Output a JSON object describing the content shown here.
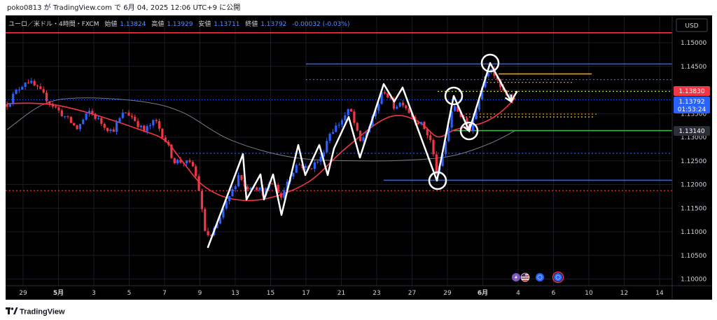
{
  "attribution": "poko0813 が TradingView.com で 6月 04, 2025 12:06 UTC+9 に公開",
  "header": {
    "symbol": "ユーロ／米ドル・4時間・FXCM",
    "open_label": "始値",
    "open": "1.13824",
    "high_label": "高値",
    "high": "1.13929",
    "low_label": "安値",
    "low": "1.13711",
    "close_label": "終値",
    "close": "1.13792",
    "change": "-0.00032 (-0.03%)"
  },
  "price_scale": {
    "currency": "USD",
    "ticks": [
      "1.15000",
      "1.14500",
      "1.13500",
      "1.13000",
      "1.12500",
      "1.12000",
      "1.11500",
      "1.11000",
      "1.10500",
      "1.10000"
    ]
  },
  "badges": {
    "fast_ma": {
      "value": "1.13830",
      "color": "#f23645"
    },
    "last_price": {
      "value": "1.13792",
      "countdown": "01:53:24",
      "color": "#2962ff"
    },
    "level": {
      "value": "1.13140",
      "color": "#2a2e39"
    }
  },
  "time_axis": {
    "labels": [
      "29",
      "5月",
      "3",
      "5",
      "7",
      "9",
      "13",
      "15",
      "17",
      "21",
      "23",
      "27",
      "29",
      "6月",
      "4",
      "6",
      "10",
      "12",
      "14"
    ]
  },
  "events": [
    {
      "icon": "lightning-icon",
      "color": "#7e57c2"
    },
    {
      "icon": "us-flag-icon",
      "color": "#b22234"
    },
    {
      "icon": "economic-event-icon",
      "color": "#2962ff"
    },
    {
      "icon": "economic-event-icon",
      "color": "#2962ff"
    }
  ],
  "colors": {
    "candle_up": "#2962ff",
    "candle_down": "#f23645",
    "chart_bg": "#000000",
    "grid": "#1a1d26",
    "fast_ma": "#f23645",
    "slow_ma": "#787b86",
    "pattern_lines": "#ffffff",
    "last_price_line": "#2962ff"
  },
  "footer": {
    "brand": "TradingView"
  },
  "chart_data": {
    "type": "bar",
    "ylim": [
      1.0986,
      1.1558
    ],
    "grid": true,
    "last_bar": {
      "open": 1.13824,
      "high": 1.13929,
      "low": 1.13711,
      "close": 1.13792
    },
    "levels": [
      {
        "price": 1.1521,
        "color": "#f23645",
        "style": "solid"
      },
      {
        "price": 1.1187,
        "color": "#f23645",
        "style": "dotted"
      },
      {
        "price": 1.1455,
        "color": "#2962ff",
        "style": "solid"
      },
      {
        "price": 1.1422,
        "color": "#2962ff",
        "style": "dotted"
      },
      {
        "price": 1.1266,
        "color": "#2962ff",
        "style": "dotted"
      },
      {
        "price": 1.1209,
        "color": "#2962ff",
        "style": "solid"
      },
      {
        "price": 1.1434,
        "color": "#ff9800",
        "style": "solid"
      },
      {
        "price": 1.1416,
        "color": "#ff9800",
        "style": "dotted"
      },
      {
        "price": 1.1397,
        "color": "#cddc39",
        "style": "dotted"
      },
      {
        "price": 1.1314,
        "color": "#4caf50",
        "style": "solid"
      },
      {
        "price": 1.1349,
        "color": "#ff9800",
        "style": "dotted"
      },
      {
        "price": 1.1343,
        "color": "#ffb74d",
        "style": "dotted"
      }
    ]
  }
}
